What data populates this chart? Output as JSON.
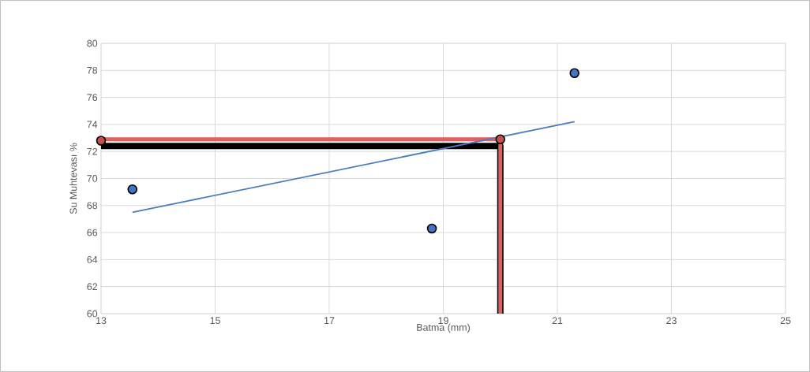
{
  "chart_data": {
    "type": "scatter",
    "xlabel": "Batma (mm)",
    "ylabel": "Su Muhtevası %",
    "xlim": [
      13,
      25
    ],
    "xticks": [
      13,
      15,
      17,
      19,
      21,
      23,
      25
    ],
    "ylim": [
      60,
      80
    ],
    "yticks": [
      60,
      62,
      64,
      66,
      68,
      70,
      72,
      74,
      76,
      78,
      80
    ],
    "grid": true,
    "series": [
      {
        "type": "line",
        "marker": "none",
        "color": "#000000",
        "x": [
          13,
          20,
          20
        ],
        "values": [
          72.4,
          72.4,
          60
        ]
      },
      {
        "type": "line",
        "marker": "none",
        "color": "#e06060",
        "x": [
          13,
          20,
          20
        ],
        "values": [
          72.9,
          72.9,
          60
        ]
      },
      {
        "type": "line",
        "marker": "none",
        "color": "#4a7ebb",
        "x": [
          13.55,
          21.3
        ],
        "values": [
          67.5,
          74.2
        ]
      },
      {
        "marker": "circle",
        "color": "#4472c4",
        "x": [
          13.55,
          18.8,
          21.3
        ],
        "values": [
          69.2,
          66.3,
          77.8
        ]
      },
      {
        "marker": "circle",
        "color": "#c0504d",
        "x": [
          13,
          20
        ],
        "values": [
          72.8,
          72.9
        ]
      }
    ]
  }
}
